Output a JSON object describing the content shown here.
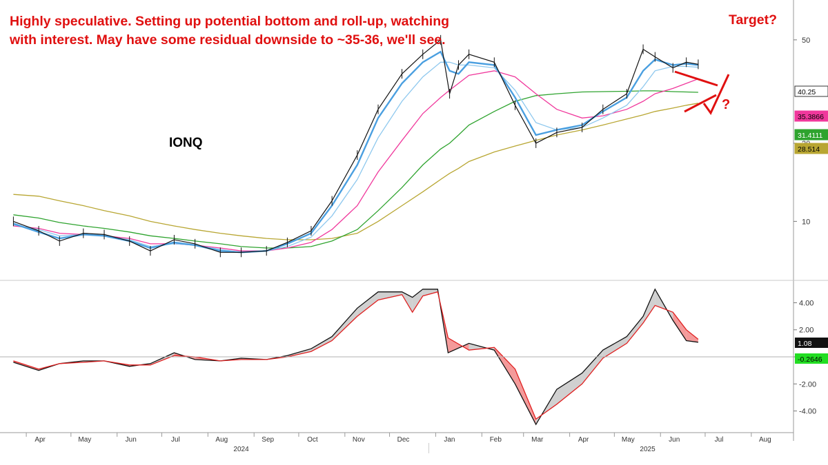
{
  "annotations": {
    "note": "Highly speculative. Setting up potential bottom and roll-up, watching with interest. May have some residual downside to ~35-36, we'll see.",
    "target": "Target?",
    "question_mark": "?"
  },
  "chart_data": {
    "type": "line",
    "title": "IONQ",
    "x_labels": [
      "Apr",
      "May",
      "Jun",
      "Jul",
      "Aug",
      "Sep",
      "Oct",
      "Nov",
      "Dec",
      "Jan",
      "Feb",
      "Mar",
      "Apr",
      "May",
      "Jun",
      "Jul",
      "Aug"
    ],
    "year_labels": [
      "2024",
      "2025"
    ],
    "price_panel": {
      "y_ticks": [
        10,
        20,
        50
      ],
      "scale": "log",
      "ylim": [
        6,
        60
      ],
      "last_value_labels": [
        {
          "value": "40.25",
          "color": "#ffffff",
          "text_color": "#000000"
        },
        {
          "value": "35.3866",
          "color": "#f0389c",
          "text_color": "#000000"
        },
        {
          "value": "31.4111",
          "color": "#2ea32e",
          "text_color": "#ffffff"
        },
        {
          "value": "28.514",
          "color": "#b8a632",
          "text_color": "#000000"
        }
      ],
      "dates": [
        "2024-03-15",
        "2024-04-01",
        "2024-04-15",
        "2024-05-01",
        "2024-05-15",
        "2024-06-01",
        "2024-06-15",
        "2024-07-01",
        "2024-07-15",
        "2024-08-01",
        "2024-08-15",
        "2024-09-01",
        "2024-09-15",
        "2024-10-01",
        "2024-10-15",
        "2024-11-01",
        "2024-11-15",
        "2024-12-01",
        "2024-12-15",
        "2024-12-27",
        "2025-01-02",
        "2025-01-08",
        "2025-01-15",
        "2025-02-01",
        "2025-02-15",
        "2025-03-01",
        "2025-03-15",
        "2025-04-01",
        "2025-04-15",
        "2025-05-01",
        "2025-05-12",
        "2025-05-20",
        "2025-06-01",
        "2025-06-10",
        "2025-06-18"
      ],
      "series": [
        {
          "name": "",
          "color": "#111111",
          "values": [
            10.0,
            9.2,
            8.4,
            9.0,
            8.9,
            8.4,
            7.7,
            8.5,
            8.2,
            7.6,
            7.6,
            7.7,
            8.3,
            9.2,
            12.0,
            18.0,
            27.0,
            37.0,
            44.0,
            50.0,
            31.0,
            40.0,
            44.0,
            41.0,
            28.0,
            20.0,
            22.0,
            23.0,
            27.0,
            31.0,
            46.0,
            43.0,
            39.0,
            41.0,
            40.25
          ]
        },
        {
          "name": "",
          "color": "#4a9fe0",
          "values": [
            9.8,
            9.1,
            8.6,
            8.9,
            8.8,
            8.4,
            7.9,
            8.3,
            8.1,
            7.7,
            7.6,
            7.7,
            8.2,
            9.0,
            11.5,
            16.5,
            25.0,
            34.0,
            41.0,
            45.0,
            38.0,
            37.0,
            41.0,
            40.0,
            30.0,
            21.5,
            22.5,
            23.5,
            26.5,
            30.0,
            38.0,
            42.0,
            40.0,
            40.5,
            40.0
          ]
        },
        {
          "name": "",
          "color": "#8ec8ee",
          "values": [
            9.7,
            9.3,
            8.8,
            8.9,
            8.8,
            8.5,
            8.0,
            8.2,
            8.1,
            7.8,
            7.6,
            7.7,
            8.0,
            8.7,
            10.5,
            14.5,
            21.0,
            29.0,
            36.0,
            41.0,
            41.0,
            40.0,
            40.0,
            39.0,
            32.0,
            24.0,
            22.5,
            23.0,
            25.0,
            28.0,
            33.0,
            38.0,
            39.5,
            39.5,
            39.2
          ]
        },
        {
          "name": "",
          "color": "#f0389c",
          "values": [
            9.6,
            9.4,
            9.0,
            8.9,
            8.8,
            8.6,
            8.2,
            8.2,
            8.1,
            7.9,
            7.7,
            7.7,
            7.9,
            8.3,
            9.3,
            11.5,
            15.5,
            20.5,
            26.0,
            30.0,
            32.0,
            34.0,
            36.5,
            38.0,
            36.0,
            31.0,
            27.0,
            25.0,
            25.5,
            27.0,
            29.0,
            31.0,
            32.5,
            34.0,
            35.3866
          ]
        },
        {
          "name": "",
          "color": "#2ea32e",
          "values": [
            10.6,
            10.3,
            9.9,
            9.6,
            9.4,
            9.1,
            8.8,
            8.6,
            8.4,
            8.2,
            8.0,
            7.9,
            7.9,
            8.0,
            8.4,
            9.3,
            11.0,
            13.5,
            16.5,
            19.0,
            20.0,
            21.5,
            23.5,
            26.5,
            29.0,
            30.5,
            31.0,
            31.5,
            31.6,
            31.7,
            31.8,
            31.8,
            31.6,
            31.5,
            31.4111
          ]
        },
        {
          "name": "",
          "color": "#b8a632",
          "values": [
            12.7,
            12.5,
            12.0,
            11.5,
            11.0,
            10.5,
            10.0,
            9.6,
            9.3,
            9.0,
            8.8,
            8.6,
            8.5,
            8.5,
            8.6,
            9.0,
            10.0,
            11.5,
            13.0,
            14.5,
            15.3,
            16.0,
            17.0,
            18.5,
            19.5,
            20.5,
            21.5,
            22.5,
            23.5,
            24.8,
            25.7,
            26.5,
            27.3,
            28.0,
            28.514
          ]
        }
      ]
    },
    "oscillator_panel": {
      "y_ticks": [
        4.0,
        2.0,
        0.0,
        -2.0,
        -4.0
      ],
      "ylim": [
        -5.6,
        5.5
      ],
      "last_value_labels": [
        {
          "value": "1.08",
          "color": "#111111",
          "text_color": "#ffffff"
        },
        {
          "value": "-0.2646",
          "color": "#22dd22",
          "text_color": "#000000"
        }
      ],
      "dates": [
        "2024-03-15",
        "2024-04-01",
        "2024-04-15",
        "2024-05-01",
        "2024-05-15",
        "2024-06-01",
        "2024-06-15",
        "2024-07-01",
        "2024-07-15",
        "2024-08-01",
        "2024-08-15",
        "2024-09-01",
        "2024-09-15",
        "2024-10-01",
        "2024-10-15",
        "2024-11-01",
        "2024-11-15",
        "2024-12-01",
        "2024-12-08",
        "2024-12-15",
        "2024-12-25",
        "2025-01-01",
        "2025-01-15",
        "2025-02-01",
        "2025-02-15",
        "2025-03-01",
        "2025-03-15",
        "2025-04-01",
        "2025-04-15",
        "2025-05-01",
        "2025-05-12",
        "2025-05-20",
        "2025-06-01",
        "2025-06-10",
        "2025-06-18"
      ],
      "series": [
        {
          "name": "",
          "color": "#111111",
          "values": [
            -0.4,
            -1.0,
            -0.5,
            -0.3,
            -0.3,
            -0.7,
            -0.5,
            0.3,
            -0.2,
            -0.3,
            -0.1,
            -0.2,
            0.1,
            0.6,
            1.5,
            3.6,
            4.8,
            4.8,
            4.4,
            5.0,
            5.0,
            0.3,
            1.0,
            0.5,
            -2.0,
            -5.0,
            -2.4,
            -1.2,
            0.5,
            1.5,
            3.0,
            5.0,
            2.7,
            1.2,
            1.08
          ]
        },
        {
          "name": "",
          "color": "#e02020",
          "values": [
            -0.3,
            -0.9,
            -0.5,
            -0.4,
            -0.3,
            -0.6,
            -0.6,
            0.1,
            0.0,
            -0.3,
            -0.2,
            -0.2,
            0.0,
            0.4,
            1.2,
            3.0,
            4.2,
            4.6,
            3.3,
            4.5,
            4.8,
            1.4,
            0.5,
            0.7,
            -0.9,
            -4.6,
            -3.5,
            -2.0,
            -0.1,
            1.0,
            2.5,
            3.8,
            3.3,
            2.0,
            1.3
          ]
        }
      ]
    }
  }
}
